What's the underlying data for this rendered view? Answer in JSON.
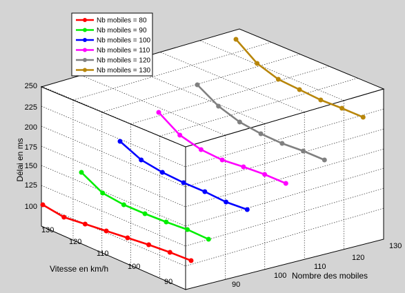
{
  "chart_data": {
    "type": "line",
    "title": "",
    "zlabel": "Délai en ms",
    "xlabel": "Vitesse en km/h",
    "ylabel": "Nombre des mobiles",
    "z_ticks": [
      "100",
      "125",
      "150",
      "175",
      "200",
      "225",
      "250"
    ],
    "x_ticks": [
      "90",
      "100",
      "110",
      "120",
      "130"
    ],
    "y_ticks": [
      "90",
      "100",
      "110",
      "120",
      "130"
    ],
    "legend_position": "top-left",
    "grid": true,
    "series": [
      {
        "name": "Nb mobiles = 80",
        "color": "#ff0000",
        "x": [
          130,
          124,
          118,
          112,
          106,
          100,
          94,
          88
        ],
        "z": [
          113,
          95,
          85,
          75,
          65,
          55,
          44,
          32
        ]
      },
      {
        "name": "Nb mobiles = 90",
        "color": "#00ee00",
        "x": [
          130,
          124,
          118,
          112,
          106,
          100,
          94
        ],
        "z": [
          160,
          130,
          113,
          100,
          88,
          77,
          63
        ]
      },
      {
        "name": "Nb mobiles = 100",
        "color": "#0000ff",
        "x": [
          130,
          124,
          118,
          112,
          106,
          100,
          94
        ],
        "z": [
          205,
          178,
          160,
          145,
          132,
          117,
          106
        ]
      },
      {
        "name": "Nb mobiles = 110",
        "color": "#ff00ff",
        "x": [
          130,
          124,
          118,
          112,
          106,
          100,
          94
        ],
        "z": [
          247,
          214,
          193,
          178,
          168,
          157,
          144
        ]
      },
      {
        "name": "Nb mobiles = 120",
        "color": "#808080",
        "x": [
          130,
          124,
          118,
          112,
          106,
          100,
          94
        ],
        "z": [
          287,
          256,
          233,
          216,
          202,
          191,
          178
        ]
      },
      {
        "name": "Nb mobiles = 130",
        "color": "#b8860b",
        "x": [
          130,
          124,
          118,
          112,
          106,
          100,
          94
        ],
        "z": [
          353,
          318,
          295,
          280,
          265,
          253,
          240
        ]
      }
    ]
  }
}
